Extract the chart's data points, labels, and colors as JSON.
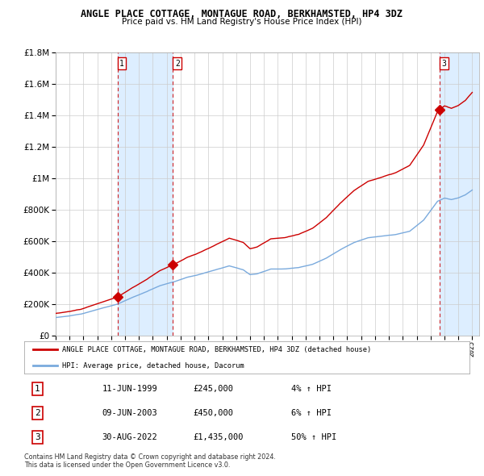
{
  "title": "ANGLE PLACE COTTAGE, MONTAGUE ROAD, BERKHAMSTED, HP4 3DZ",
  "subtitle": "Price paid vs. HM Land Registry's House Price Index (HPI)",
  "background_color": "#ffffff",
  "plot_bg_color": "#ffffff",
  "grid_color": "#cccccc",
  "sale_dates_year": [
    1999.45,
    2003.44,
    2022.66
  ],
  "sale_prices": [
    245000,
    450000,
    1435000
  ],
  "sale_labels": [
    "1",
    "2",
    "3"
  ],
  "legend_line1": "ANGLE PLACE COTTAGE, MONTAGUE ROAD, BERKHAMSTED, HP4 3DZ (detached house)",
  "legend_line2": "HPI: Average price, detached house, Dacorum",
  "table_rows": [
    [
      "1",
      "11-JUN-1999",
      "£245,000",
      "4% ↑ HPI"
    ],
    [
      "2",
      "09-JUN-2003",
      "£450,000",
      "6% ↑ HPI"
    ],
    [
      "3",
      "30-AUG-2022",
      "£1,435,000",
      "50% ↑ HPI"
    ]
  ],
  "footnote": "Contains HM Land Registry data © Crown copyright and database right 2024.\nThis data is licensed under the Open Government Licence v3.0.",
  "red_line_color": "#cc0000",
  "blue_line_color": "#7aaadd",
  "shade_color": "#ddeeff",
  "vline_color": "#cc0000",
  "diamond_color": "#cc0000",
  "ylim": [
    0,
    1800000
  ],
  "xlim_start": 1995.0,
  "xlim_end": 2025.5,
  "yticks": [
    0,
    200000,
    400000,
    600000,
    800000,
    1000000,
    1200000,
    1400000,
    1600000,
    1800000
  ]
}
